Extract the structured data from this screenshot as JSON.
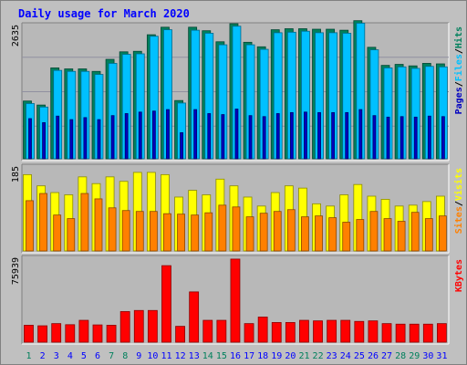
{
  "chart_data": {
    "type": "bar",
    "title": "Daily usage for March 2020",
    "categories": [
      "1",
      "2",
      "3",
      "4",
      "5",
      "6",
      "7",
      "8",
      "9",
      "10",
      "11",
      "12",
      "13",
      "14",
      "15",
      "16",
      "17",
      "18",
      "19",
      "20",
      "21",
      "22",
      "23",
      "24",
      "25",
      "26",
      "27",
      "28",
      "29",
      "30",
      "31"
    ],
    "weekend_days": [
      "1",
      "7",
      "8",
      "14",
      "15",
      "21",
      "22",
      "28",
      "29"
    ],
    "panels": [
      {
        "name": "hits_files_pages",
        "ymax": 2635,
        "ymax_label": "2635",
        "side_label": [
          "Pages",
          "/",
          "Files",
          "/",
          "Hits"
        ],
        "series": [
          {
            "name": "Hits",
            "color": "#00805c",
            "values": [
              1150,
              1070,
              1810,
              1790,
              1790,
              1740,
              1980,
              2130,
              2140,
              2470,
              2620,
              1160,
              2620,
              2550,
              2330,
              2690,
              2320,
              2230,
              2570,
              2590,
              2590,
              2580,
              2580,
              2560,
              2750,
              2220,
              1860,
              1880,
              1850,
              1900,
              1890
            ]
          },
          {
            "name": "Files",
            "color": "#00c0ff",
            "values": [
              1100,
              1030,
              1760,
              1740,
              1740,
              1680,
              1900,
              2080,
              2090,
              2440,
              2570,
              1110,
              2560,
              2500,
              2270,
              2640,
              2270,
              2180,
              2510,
              2520,
              2540,
              2510,
              2510,
              2500,
              2700,
              2170,
              1810,
              1830,
              1800,
              1840,
              1830
            ]
          },
          {
            "name": "Pages",
            "color": "#0000c0",
            "values": [
              800,
              720,
              850,
              780,
              820,
              780,
              860,
              900,
              930,
              950,
              980,
              520,
              980,
              900,
              880,
              990,
              860,
              840,
              900,
              920,
              930,
              920,
              920,
              920,
              980,
              860,
              830,
              840,
              830,
              850,
              840
            ]
          }
        ]
      },
      {
        "name": "visits_sites",
        "ymax": 185,
        "ymax_label": "185",
        "side_label": [
          "Sites",
          "/",
          "Visits"
        ],
        "series": [
          {
            "name": "Visits",
            "color": "#ffff00",
            "values": [
              170,
              145,
              130,
              125,
              165,
              150,
              165,
              155,
              175,
              175,
              170,
              120,
              135,
              125,
              160,
              145,
              120,
              100,
              130,
              145,
              140,
              105,
              100,
              125,
              148,
              122,
              115,
              100,
              102,
              110,
              122
            ]
          },
          {
            "name": "Sites",
            "color": "#ff8000",
            "values": [
              112,
              128,
              80,
              72,
              128,
              116,
              96,
              90,
              88,
              88,
              83,
              82,
              80,
              85,
              102,
              98,
              76,
              84,
              88,
              92,
              76,
              78,
              74,
              64,
              70,
              88,
              72,
              66,
              86,
              72,
              78
            ]
          }
        ]
      },
      {
        "name": "kbytes",
        "ymax": 75939,
        "ymax_label": "75939",
        "side_label": [
          "KBytes"
        ],
        "series": [
          {
            "name": "KBytes",
            "color": "#ff0000",
            "values": [
              15500,
              15000,
              17000,
              16000,
              20000,
              15800,
              15500,
              28000,
              29000,
              29000,
              70000,
              14500,
              46000,
              20000,
              20000,
              76000,
              17000,
              23000,
              18000,
              18000,
              20000,
              19500,
              20000,
              20000,
              19000,
              19500,
              17000,
              16500,
              16500,
              16500,
              17000
            ]
          }
        ]
      }
    ],
    "colors": {
      "background": "#ffffff",
      "frame": "#c0c0c0",
      "plot": "#b8b8b8",
      "title": "#0000ff",
      "weekday_label": "#0000ff",
      "weekend_label": "#00805c",
      "gridline": "#9090a0"
    }
  }
}
